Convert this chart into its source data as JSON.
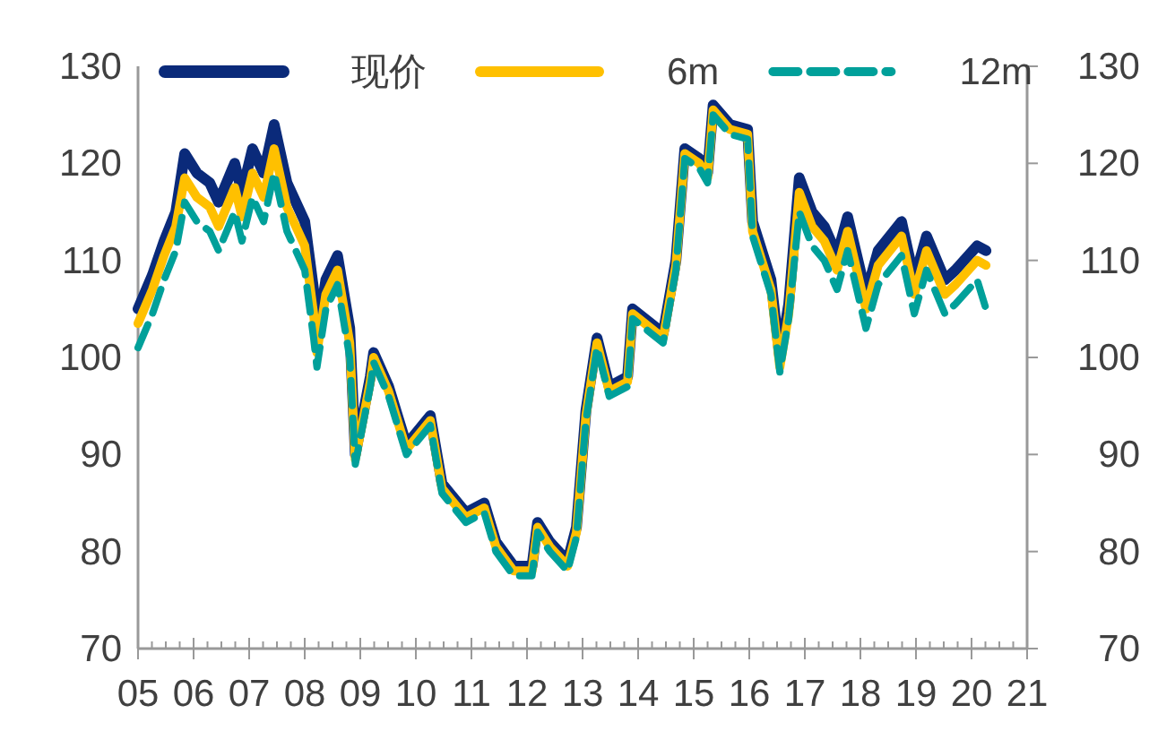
{
  "chart_data": {
    "type": "line",
    "legend": "top",
    "grid": false,
    "xlim": [
      2005,
      2021
    ],
    "xticks": [
      {
        "value": 2005,
        "label": "05"
      },
      {
        "value": 2005.25,
        "label": null
      },
      {
        "value": 2005.5,
        "label": null
      },
      {
        "value": 2005.75,
        "label": null
      },
      {
        "value": 2006,
        "label": "06"
      },
      {
        "value": 2006.25,
        "label": null
      },
      {
        "value": 2006.5,
        "label": null
      },
      {
        "value": 2006.75,
        "label": null
      },
      {
        "value": 2007,
        "label": "07"
      },
      {
        "value": 2007.25,
        "label": null
      },
      {
        "value": 2007.5,
        "label": null
      },
      {
        "value": 2007.75,
        "label": null
      },
      {
        "value": 2008,
        "label": "08"
      },
      {
        "value": 2008.25,
        "label": null
      },
      {
        "value": 2008.5,
        "label": null
      },
      {
        "value": 2008.75,
        "label": null
      },
      {
        "value": 2009,
        "label": "09"
      },
      {
        "value": 2009.25,
        "label": null
      },
      {
        "value": 2009.5,
        "label": null
      },
      {
        "value": 2009.75,
        "label": null
      },
      {
        "value": 2010,
        "label": "10"
      },
      {
        "value": 2010.25,
        "label": null
      },
      {
        "value": 2010.5,
        "label": null
      },
      {
        "value": 2010.75,
        "label": null
      },
      {
        "value": 2011,
        "label": "11"
      },
      {
        "value": 2011.25,
        "label": null
      },
      {
        "value": 2011.5,
        "label": null
      },
      {
        "value": 2011.75,
        "label": null
      },
      {
        "value": 2012,
        "label": "12"
      },
      {
        "value": 2012.25,
        "label": null
      },
      {
        "value": 2012.5,
        "label": null
      },
      {
        "value": 2012.75,
        "label": null
      },
      {
        "value": 2013,
        "label": "13"
      },
      {
        "value": 2013.25,
        "label": null
      },
      {
        "value": 2013.5,
        "label": null
      },
      {
        "value": 2013.75,
        "label": null
      },
      {
        "value": 2014,
        "label": "14"
      },
      {
        "value": 2014.25,
        "label": null
      },
      {
        "value": 2014.5,
        "label": null
      },
      {
        "value": 2014.75,
        "label": null
      },
      {
        "value": 2015,
        "label": "15"
      },
      {
        "value": 2015.25,
        "label": null
      },
      {
        "value": 2015.5,
        "label": null
      },
      {
        "value": 2015.75,
        "label": null
      },
      {
        "value": 2016,
        "label": "16"
      },
      {
        "value": 2016.25,
        "label": null
      },
      {
        "value": 2016.5,
        "label": null
      },
      {
        "value": 2016.75,
        "label": null
      },
      {
        "value": 2017,
        "label": "17"
      },
      {
        "value": 2017.25,
        "label": null
      },
      {
        "value": 2017.5,
        "label": null
      },
      {
        "value": 2017.75,
        "label": null
      },
      {
        "value": 2018,
        "label": "18"
      },
      {
        "value": 2018.25,
        "label": null
      },
      {
        "value": 2018.5,
        "label": null
      },
      {
        "value": 2018.75,
        "label": null
      },
      {
        "value": 2019,
        "label": "19"
      },
      {
        "value": 2019.25,
        "label": null
      },
      {
        "value": 2019.5,
        "label": null
      },
      {
        "value": 2019.75,
        "label": null
      },
      {
        "value": 2020,
        "label": "20"
      },
      {
        "value": 2020.25,
        "label": null
      },
      {
        "value": 2020.5,
        "label": null
      },
      {
        "value": 2020.75,
        "label": null
      },
      {
        "value": 2021,
        "label": "21"
      }
    ],
    "ylim": [
      70,
      130
    ],
    "yticks": [
      70,
      80,
      90,
      100,
      110,
      120,
      130
    ],
    "y2lim": [
      70,
      130
    ],
    "y2ticks": [
      70,
      80,
      90,
      100,
      110,
      120,
      130
    ],
    "x": [
      2005.0,
      2005.26,
      2005.47,
      2005.68,
      2005.84,
      2006.06,
      2006.29,
      2006.45,
      2006.74,
      2006.87,
      2007.06,
      2007.26,
      2007.45,
      2007.68,
      2008.0,
      2008.16,
      2008.22,
      2008.38,
      2008.59,
      2008.81,
      2008.91,
      2009.18,
      2009.24,
      2009.51,
      2009.83,
      2010.26,
      2010.47,
      2010.9,
      2011.23,
      2011.44,
      2011.76,
      2012.09,
      2012.19,
      2012.41,
      2012.73,
      2012.89,
      2013.06,
      2013.26,
      2013.48,
      2013.81,
      2013.9,
      2014.45,
      2014.68,
      2014.84,
      2015.1,
      2015.25,
      2015.35,
      2015.65,
      2015.97,
      2016.06,
      2016.39,
      2016.55,
      2016.71,
      2016.9,
      2017.13,
      2017.35,
      2017.58,
      2017.77,
      2018.1,
      2018.32,
      2018.74,
      2018.97,
      2019.19,
      2019.52,
      2019.71,
      2020.1,
      2020.26
    ],
    "series": [
      {
        "name": "现价",
        "color": "#0a2a7a",
        "line_style": "solid",
        "values": [
          105,
          108.5,
          112,
          115,
          121,
          119,
          118,
          116,
          120,
          117,
          121.5,
          119,
          124,
          118,
          114,
          107,
          102,
          108,
          110.5,
          103,
          90,
          98,
          100.5,
          97,
          91,
          94,
          87,
          84,
          85,
          81,
          78.5,
          78.5,
          83,
          81,
          79,
          82.5,
          94.5,
          102,
          97,
          98,
          105,
          102.5,
          110,
          121.5,
          120.5,
          119,
          126,
          124,
          123.5,
          114,
          108,
          100,
          105.5,
          118.5,
          115,
          113.5,
          110.5,
          114.5,
          106.5,
          111,
          114,
          108,
          112.5,
          108,
          109,
          111.5,
          111
        ]
      },
      {
        "name": "6m",
        "color": "#ffc000",
        "line_style": "solid",
        "values": [
          103.5,
          107,
          110.5,
          113.5,
          118.5,
          116.5,
          115.5,
          113.5,
          117.5,
          114.5,
          119,
          116.5,
          121.5,
          115.5,
          111.5,
          104.5,
          100.5,
          106.5,
          109,
          101.5,
          89.5,
          97.5,
          100,
          96.5,
          90.5,
          93.5,
          86.5,
          83.5,
          84.5,
          80.5,
          78,
          78,
          82.5,
          80.5,
          78.5,
          82,
          94,
          101.5,
          96.5,
          97.5,
          104.5,
          102,
          109.5,
          121,
          120,
          118.5,
          125.5,
          123.5,
          123,
          113,
          107,
          99,
          104.5,
          117,
          113.5,
          112,
          109,
          113,
          105,
          109.5,
          112.5,
          106.5,
          111,
          106.5,
          107.5,
          110,
          109.5
        ]
      },
      {
        "name": "12m",
        "color": "#00a09a",
        "line_style": "dashed",
        "values": [
          101,
          104.5,
          108,
          111,
          116,
          114,
          113,
          111,
          115,
          112,
          116.5,
          114,
          119,
          113,
          109,
          102,
          99,
          105,
          107.5,
          100,
          89,
          97,
          99.5,
          96,
          90,
          93,
          86,
          83,
          84,
          80,
          77.5,
          77.5,
          82,
          80,
          78,
          81.5,
          93.5,
          101,
          96,
          97,
          104,
          101.5,
          109,
          120.5,
          119.5,
          118,
          125,
          123,
          122.5,
          112.5,
          106.5,
          98.5,
          104,
          115,
          111.5,
          110,
          107,
          111,
          103,
          107.5,
          110.5,
          104.5,
          109,
          104.5,
          105.5,
          108,
          105
        ]
      }
    ]
  }
}
